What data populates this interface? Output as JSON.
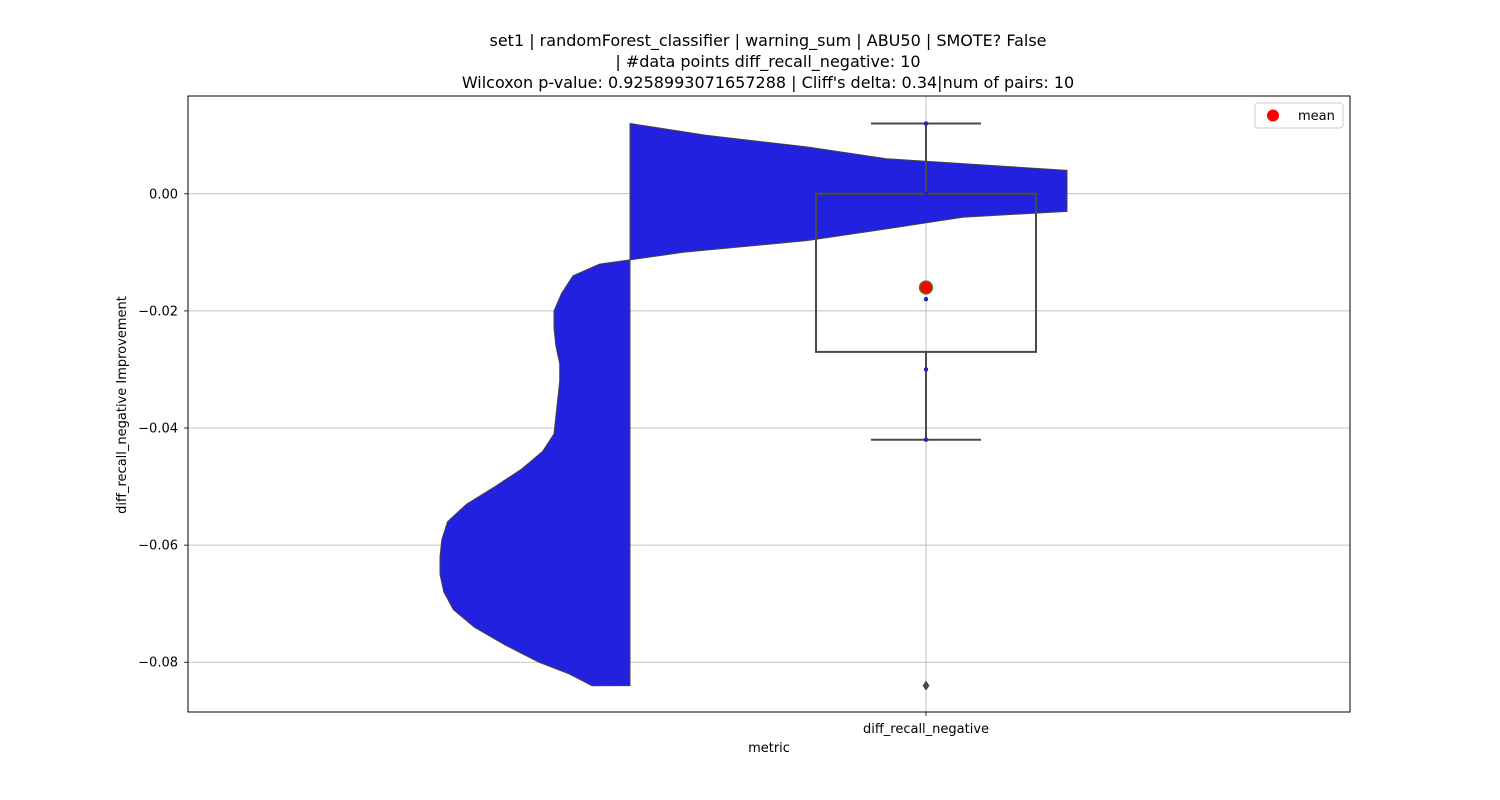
{
  "chart_data": {
    "type": "violin+box",
    "title_lines": [
      "set1 | randomForest_classifier | warning_sum | ABU50 | SMOTE? False",
      "| #data points diff_recall_negative: 10",
      "Wilcoxon p-value: 0.9258993071657288 | Cliff's delta: 0.34|num of pairs: 10"
    ],
    "xlabel": "metric",
    "ylabel": "diff_recall_negative Improvement",
    "categories": [
      "diff_recall_negative"
    ],
    "ylim": [
      -0.0885,
      0.0167
    ],
    "yticks": [
      0.0,
      -0.02,
      -0.04,
      -0.06,
      -0.08
    ],
    "ytick_labels": [
      "0.00",
      "−0.02",
      "−0.04",
      "−0.06",
      "−0.08"
    ],
    "grid": true,
    "violin": {
      "color": "#2121df",
      "side": "left",
      "y_min": -0.084,
      "y_max": 0.012,
      "density_profile": [
        [
          -0.084,
          0.2
        ],
        [
          -0.082,
          0.32
        ],
        [
          -0.08,
          0.48
        ],
        [
          -0.077,
          0.66
        ],
        [
          -0.074,
          0.82
        ],
        [
          -0.071,
          0.93
        ],
        [
          -0.068,
          0.98
        ],
        [
          -0.065,
          1.0
        ],
        [
          -0.062,
          1.0
        ],
        [
          -0.059,
          0.99
        ],
        [
          -0.056,
          0.96
        ],
        [
          -0.053,
          0.86
        ],
        [
          -0.05,
          0.71
        ],
        [
          -0.047,
          0.57
        ],
        [
          -0.044,
          0.46
        ],
        [
          -0.041,
          0.4
        ],
        [
          -0.038,
          0.39
        ],
        [
          -0.035,
          0.38
        ],
        [
          -0.032,
          0.37
        ],
        [
          -0.029,
          0.37
        ],
        [
          -0.026,
          0.39
        ],
        [
          -0.023,
          0.4
        ],
        [
          -0.02,
          0.4
        ],
        [
          -0.017,
          0.36
        ],
        [
          -0.014,
          0.3
        ],
        [
          -0.012,
          0.16
        ],
        [
          -0.01,
          -0.28
        ],
        [
          -0.008,
          -0.93
        ],
        [
          -0.006,
          -1.35
        ],
        [
          -0.004,
          -1.75
        ],
        [
          -0.003,
          -2.3
        ],
        [
          0.0,
          -2.3
        ],
        [
          0.003,
          -2.3
        ],
        [
          0.004,
          -2.3
        ],
        [
          0.006,
          -1.35
        ],
        [
          0.008,
          -0.93
        ],
        [
          0.01,
          -0.4
        ],
        [
          0.012,
          0.0
        ]
      ]
    },
    "box": {
      "whisker_low": -0.042,
      "q1": -0.027,
      "median": 0.0,
      "q3": 0.0,
      "whisker_high": 0.012,
      "mean": -0.016,
      "outliers": [
        -0.084
      ],
      "points": [
        0.012,
        0.0,
        -0.018,
        -0.03,
        -0.042
      ]
    },
    "legend": {
      "position": "top-right",
      "entries": [
        {
          "label": "mean",
          "color": "#ff0000"
        }
      ]
    }
  }
}
